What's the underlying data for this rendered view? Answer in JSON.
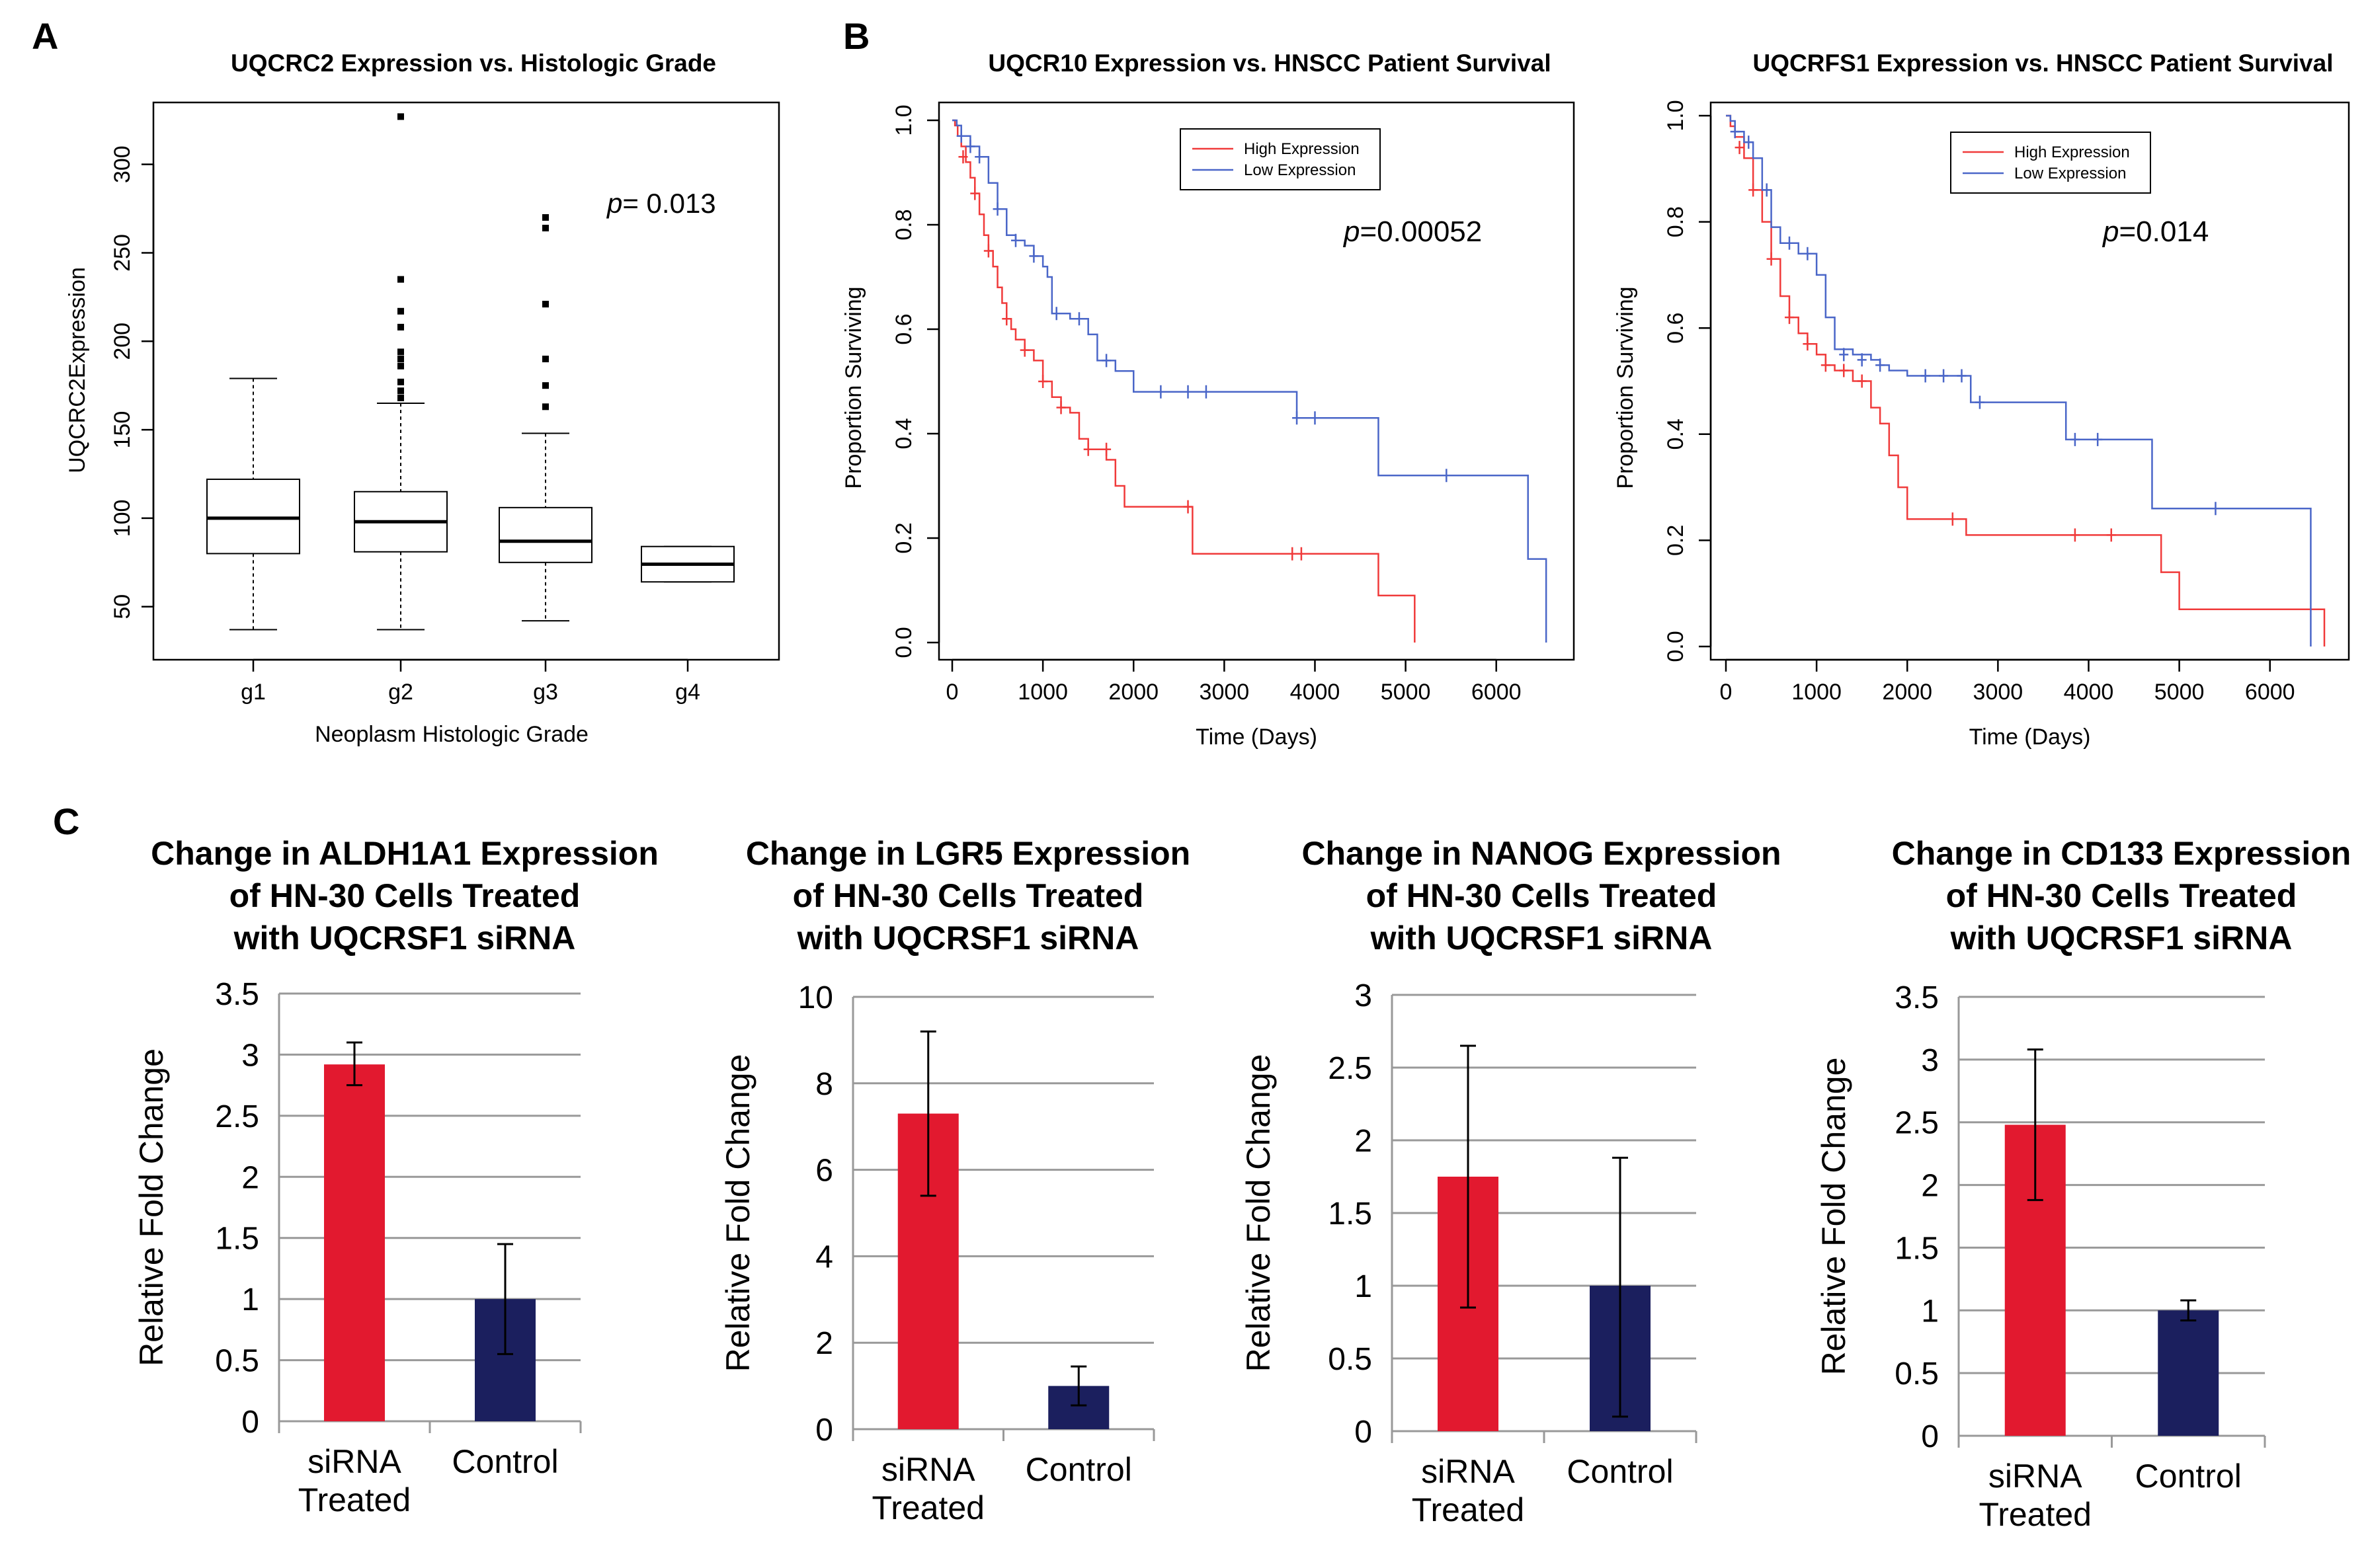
{
  "colors": {
    "high": "#f03a3a",
    "low": "#4a66c8",
    "siRNA": "#e2192f",
    "control": "#1b1f5e",
    "grid": "#999999",
    "box": "#000000"
  },
  "panel_labels": {
    "a": "A",
    "b": "B",
    "c": "C"
  },
  "chart_data": [
    {
      "id": "boxplot",
      "type": "box",
      "title": "UQCRC2 Expression vs. Histologic Grade",
      "xlabel": "Neoplasm Histologic Grade",
      "ylabel": "UQCRC2Expression",
      "ylim": [
        20,
        335
      ],
      "yticks": [
        50,
        100,
        150,
        200,
        250,
        300
      ],
      "annotation": {
        "p_label": "p",
        "p_value": "= 0.013"
      },
      "groups": [
        {
          "name": "g1",
          "min": 37,
          "q1": 80,
          "median": 100,
          "q3": 122,
          "max": 179,
          "outliers": []
        },
        {
          "name": "g2",
          "min": 37,
          "q1": 81,
          "median": 98,
          "q3": 115,
          "max": 165,
          "outliers": [
            168,
            172,
            177,
            186,
            190,
            194,
            208,
            217,
            235,
            327
          ]
        },
        {
          "name": "g3",
          "min": 42,
          "q1": 75,
          "median": 87,
          "q3": 106,
          "max": 148,
          "outliers": [
            163,
            175,
            190,
            221,
            264,
            270
          ]
        },
        {
          "name": "g4",
          "min": 64,
          "q1": 64,
          "median": 74,
          "q3": 84,
          "max": 84,
          "outliers": []
        }
      ]
    },
    {
      "id": "km1",
      "type": "line",
      "title": "UQCR10 Expression vs. HNSCC Patient Survival",
      "xlabel": "Time (Days)",
      "ylabel": "Proportion Surviving",
      "xlim": [
        0,
        6600
      ],
      "ylim": [
        0,
        1.0
      ],
      "xticks": [
        0,
        1000,
        2000,
        3000,
        4000,
        5000,
        6000
      ],
      "yticks": [
        0.0,
        0.2,
        0.4,
        0.6,
        0.8,
        1.0
      ],
      "legend": [
        "High Expression",
        "Low Expression"
      ],
      "annotation": {
        "p_label": "p",
        "p_value": "=0.00052"
      },
      "series": [
        {
          "name": "High Expression",
          "x": [
            0,
            30,
            60,
            100,
            150,
            200,
            250,
            300,
            350,
            400,
            450,
            500,
            550,
            600,
            650,
            700,
            800,
            900,
            1000,
            1100,
            1200,
            1300,
            1400,
            1500,
            1700,
            1800,
            1900,
            2650,
            2700,
            3800,
            4700,
            5100
          ],
          "y": [
            1.0,
            0.99,
            0.97,
            0.95,
            0.92,
            0.89,
            0.86,
            0.82,
            0.78,
            0.75,
            0.72,
            0.68,
            0.65,
            0.62,
            0.6,
            0.58,
            0.56,
            0.54,
            0.5,
            0.47,
            0.45,
            0.44,
            0.39,
            0.37,
            0.35,
            0.3,
            0.26,
            0.17,
            0.17,
            0.17,
            0.09,
            0.0
          ],
          "censor": [
            [
              120,
              0.93
            ],
            [
              250,
              0.86
            ],
            [
              400,
              0.75
            ],
            [
              600,
              0.62
            ],
            [
              800,
              0.56
            ],
            [
              1000,
              0.5
            ],
            [
              1200,
              0.45
            ],
            [
              1500,
              0.37
            ],
            [
              1700,
              0.37
            ],
            [
              2600,
              0.26
            ],
            [
              3750,
              0.17
            ],
            [
              3850,
              0.17
            ]
          ]
        },
        {
          "name": "Low Expression",
          "x": [
            0,
            50,
            100,
            200,
            300,
            400,
            500,
            600,
            700,
            800,
            900,
            1000,
            1050,
            1100,
            1300,
            1500,
            1600,
            1800,
            2000,
            3700,
            3800,
            4700,
            6350,
            6550
          ],
          "y": [
            1.0,
            0.99,
            0.97,
            0.95,
            0.93,
            0.88,
            0.83,
            0.78,
            0.77,
            0.76,
            0.74,
            0.72,
            0.7,
            0.63,
            0.62,
            0.59,
            0.54,
            0.52,
            0.48,
            0.48,
            0.43,
            0.32,
            0.16,
            0.0
          ],
          "censor": [
            [
              100,
              0.97
            ],
            [
              200,
              0.95
            ],
            [
              300,
              0.93
            ],
            [
              500,
              0.83
            ],
            [
              700,
              0.77
            ],
            [
              900,
              0.74
            ],
            [
              1150,
              0.63
            ],
            [
              1400,
              0.62
            ],
            [
              1700,
              0.54
            ],
            [
              2300,
              0.48
            ],
            [
              2600,
              0.48
            ],
            [
              2800,
              0.48
            ],
            [
              3800,
              0.43
            ],
            [
              4000,
              0.43
            ],
            [
              5450,
              0.32
            ]
          ]
        }
      ]
    },
    {
      "id": "km2",
      "type": "line",
      "title": "UQCRFS1 Expression vs. HNSCC Patient Survival",
      "xlabel": "Time (Days)",
      "ylabel": "Proportion Surviving",
      "xlim": [
        0,
        6600
      ],
      "ylim": [
        0,
        1.0
      ],
      "xticks": [
        0,
        1000,
        2000,
        3000,
        4000,
        5000,
        6000
      ],
      "yticks": [
        0.0,
        0.2,
        0.4,
        0.6,
        0.8,
        1.0
      ],
      "legend": [
        "High Expression",
        "Low Expression"
      ],
      "annotation": {
        "p_label": "p",
        "p_value": "=0.014"
      },
      "series": [
        {
          "name": "High Expression",
          "x": [
            0,
            50,
            100,
            200,
            300,
            400,
            500,
            600,
            700,
            800,
            900,
            1000,
            1100,
            1200,
            1400,
            1600,
            1700,
            1800,
            1900,
            2000,
            2600,
            2650,
            4700,
            4800,
            5000,
            6600
          ],
          "y": [
            1.0,
            0.98,
            0.96,
            0.92,
            0.86,
            0.8,
            0.73,
            0.66,
            0.62,
            0.59,
            0.57,
            0.55,
            0.53,
            0.52,
            0.5,
            0.45,
            0.42,
            0.36,
            0.3,
            0.24,
            0.24,
            0.21,
            0.21,
            0.14,
            0.07,
            0.0
          ],
          "censor": [
            [
              150,
              0.94
            ],
            [
              300,
              0.86
            ],
            [
              500,
              0.73
            ],
            [
              700,
              0.62
            ],
            [
              900,
              0.57
            ],
            [
              1100,
              0.53
            ],
            [
              1300,
              0.52
            ],
            [
              1500,
              0.5
            ],
            [
              2500,
              0.24
            ],
            [
              3850,
              0.21
            ],
            [
              4250,
              0.21
            ]
          ]
        },
        {
          "name": "Low Expression",
          "x": [
            0,
            50,
            100,
            200,
            300,
            400,
            500,
            600,
            800,
            1000,
            1100,
            1200,
            1400,
            1600,
            1700,
            1800,
            2000,
            2600,
            2700,
            3700,
            3750,
            4700,
            6400,
            6450
          ],
          "y": [
            1.0,
            0.99,
            0.97,
            0.95,
            0.92,
            0.86,
            0.79,
            0.76,
            0.74,
            0.7,
            0.62,
            0.56,
            0.55,
            0.54,
            0.53,
            0.52,
            0.51,
            0.51,
            0.46,
            0.46,
            0.39,
            0.26,
            0.26,
            0.0
          ],
          "censor": [
            [
              100,
              0.97
            ],
            [
              250,
              0.95
            ],
            [
              450,
              0.86
            ],
            [
              700,
              0.76
            ],
            [
              900,
              0.74
            ],
            [
              1300,
              0.55
            ],
            [
              1500,
              0.54
            ],
            [
              1700,
              0.53
            ],
            [
              2200,
              0.51
            ],
            [
              2400,
              0.51
            ],
            [
              2600,
              0.51
            ],
            [
              2800,
              0.46
            ],
            [
              3850,
              0.39
            ],
            [
              4100,
              0.39
            ],
            [
              5400,
              0.26
            ]
          ]
        }
      ]
    },
    {
      "id": "bar1",
      "type": "bar",
      "title": [
        "Change in ALDH1A1 Expression",
        "of HN-30 Cells Treated",
        "with UQCRSF1 siRNA"
      ],
      "ylabel": "Relative Fold Change",
      "ylim": [
        0,
        3.5
      ],
      "yticks": [
        "0",
        "0.5",
        "1",
        "1.5",
        "2",
        "2.5",
        "3",
        "3.5"
      ],
      "categories": [
        [
          "siRNA",
          "Treated"
        ],
        [
          "Control"
        ]
      ],
      "values": [
        2.92,
        1.0
      ],
      "errors": [
        [
          2.75,
          3.1
        ],
        [
          0.55,
          1.45
        ]
      ]
    },
    {
      "id": "bar2",
      "type": "bar",
      "title": [
        "Change in LGR5 Expression",
        "of HN-30 Cells Treated",
        "with UQCRSF1 siRNA"
      ],
      "ylabel": "Relative Fold Change",
      "ylim": [
        0,
        10
      ],
      "yticks": [
        "0",
        "2",
        "4",
        "6",
        "8",
        "10"
      ],
      "categories": [
        [
          "siRNA",
          "Treated"
        ],
        [
          "Control"
        ]
      ],
      "values": [
        7.3,
        1.0
      ],
      "errors": [
        [
          5.4,
          9.2
        ],
        [
          0.55,
          1.45
        ]
      ]
    },
    {
      "id": "bar3",
      "type": "bar",
      "title": [
        "Change in NANOG Expression",
        "of HN-30 Cells Treated",
        "with UQCRSF1 siRNA"
      ],
      "ylabel": "Relative Fold Change",
      "ylim": [
        0,
        3
      ],
      "yticks": [
        "0",
        "0.5",
        "1",
        "1.5",
        "2",
        "2.5",
        "3"
      ],
      "categories": [
        [
          "siRNA",
          "Treated"
        ],
        [
          "Control"
        ]
      ],
      "values": [
        1.75,
        1.0
      ],
      "errors": [
        [
          0.85,
          2.65
        ],
        [
          0.1,
          1.88
        ]
      ]
    },
    {
      "id": "bar4",
      "type": "bar",
      "title": [
        "Change in CD133 Expression",
        "of HN-30 Cells Treated",
        "with UQCRSF1 siRNA"
      ],
      "ylabel": "Relative Fold Change",
      "ylim": [
        0,
        3.5
      ],
      "yticks": [
        "0",
        "0.5",
        "1",
        "1.5",
        "2",
        "2.5",
        "3",
        "3.5"
      ],
      "categories": [
        [
          "siRNA",
          "Treated"
        ],
        [
          "Control"
        ]
      ],
      "values": [
        2.48,
        1.0
      ],
      "errors": [
        [
          1.88,
          3.08
        ],
        [
          0.92,
          1.08
        ]
      ]
    }
  ]
}
